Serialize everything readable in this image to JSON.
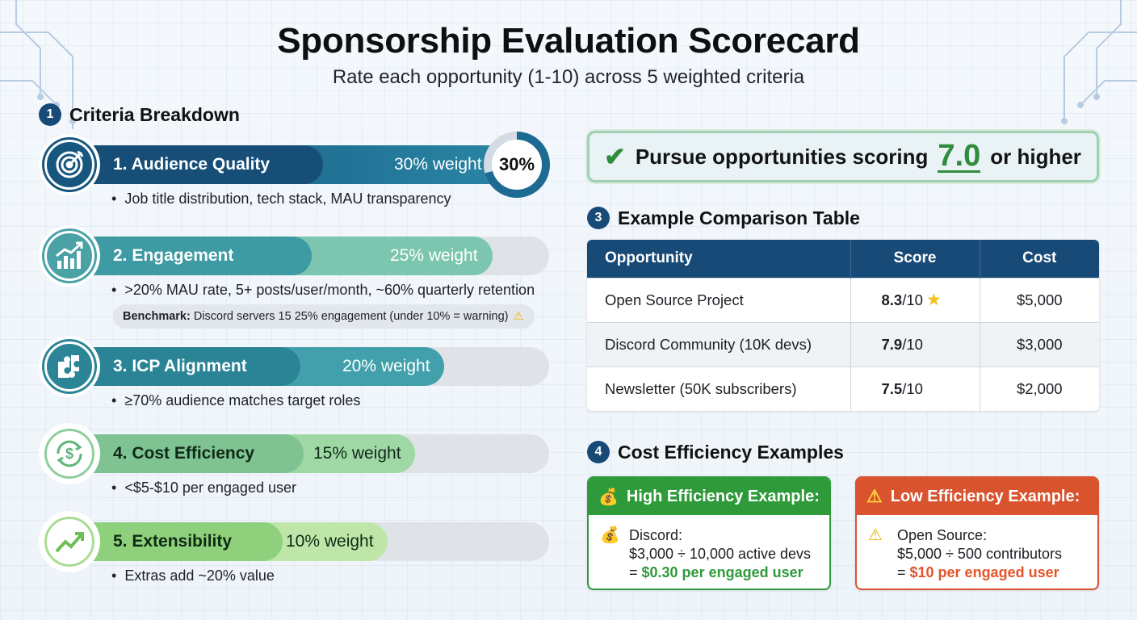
{
  "header": {
    "title": "Sponsorship Evaluation Scorecard",
    "subtitle": "Rate each opportunity (1-10) across 5 weighted criteria"
  },
  "sections": {
    "criteria": {
      "number": "1",
      "title": "Criteria Breakdown"
    },
    "comparison": {
      "number": "3",
      "title": "Example Comparison Table"
    },
    "cost": {
      "number": "4",
      "title": "Cost Efficiency Examples"
    }
  },
  "criteria": [
    {
      "name": "1. Audience Quality",
      "weight": "30% weight",
      "weight_fraction": 0.3,
      "icon": "target-icon",
      "color": "#17567f",
      "bullet": "Job title distribution, tech stack, MAU transparency",
      "ring_label": "30%"
    },
    {
      "name": "2. Engagement",
      "weight": "25% weight",
      "weight_fraction": 0.25,
      "icon": "growth-chart-icon",
      "color": "#3f9aa2",
      "bullet": ">20% MAU rate, 5+ posts/user/month, ~60% quarterly retention"
    },
    {
      "name": "3. ICP Alignment",
      "weight": "20% weight",
      "weight_fraction": 0.2,
      "icon": "puzzle-icon",
      "color": "#2c8595",
      "bullet": "≥70% audience matches target roles"
    },
    {
      "name": "4. Cost Efficiency",
      "weight": "15% weight",
      "weight_fraction": 0.15,
      "icon": "dollar-cycle-icon",
      "color": "#7ec28f",
      "bullet": "<$5-$10 per engaged user"
    },
    {
      "name": "5. Extensibility",
      "weight": "10% weight",
      "weight_fraction": 0.1,
      "icon": "trend-up-icon",
      "color": "#8fcf7c",
      "bullet": "Extras add ~20% value"
    }
  ],
  "benchmark": {
    "label": "Benchmark:",
    "text": "Discord servers 15 25% engagement (under 10% = warning)",
    "icon": "warning-icon"
  },
  "recommendation": {
    "prefix": "Pursue opportunities scoring",
    "value": "7.0",
    "suffix": "or higher",
    "icon": "check-icon"
  },
  "comparison_table": {
    "headers": [
      "Opportunity",
      "Score",
      "Cost"
    ],
    "rows": [
      {
        "opportunity": "Open Source Project",
        "score": "8.3",
        "score_suffix": "/10",
        "star": true,
        "cost": "$5,000"
      },
      {
        "opportunity": "Discord Community (10K devs)",
        "score": "7.9",
        "score_suffix": "/10",
        "star": false,
        "cost": "$3,000"
      },
      {
        "opportunity": "Newsletter (50K subscribers)",
        "score": "7.5",
        "score_suffix": "/10",
        "star": false,
        "cost": "$2,000"
      }
    ]
  },
  "cost_examples": {
    "high": {
      "title": "High Efficiency Example:",
      "line1": "Discord:",
      "line2": "$3,000 ÷ 10,000 active devs",
      "line3_prefix": "= ",
      "line3_value": "$0.30 per engaged user",
      "color": "#2e9a3a"
    },
    "low": {
      "title": "Low Efficiency Example:",
      "line1": "Open Source:",
      "line2": "$5,000 ÷ 500 contributors",
      "line3_prefix": "= ",
      "line3_value": "$10 per engaged user",
      "color": "#d9532e"
    }
  },
  "colors": {
    "navy": "#184a78",
    "green": "#2e8c3c",
    "red": "#d9532e"
  }
}
